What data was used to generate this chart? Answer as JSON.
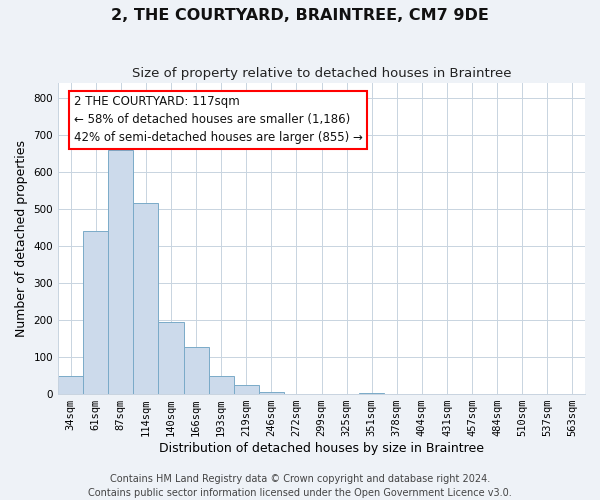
{
  "title": "2, THE COURTYARD, BRAINTREE, CM7 9DE",
  "subtitle": "Size of property relative to detached houses in Braintree",
  "xlabel": "Distribution of detached houses by size in Braintree",
  "ylabel": "Number of detached properties",
  "bar_labels": [
    "34sqm",
    "61sqm",
    "87sqm",
    "114sqm",
    "140sqm",
    "166sqm",
    "193sqm",
    "219sqm",
    "246sqm",
    "272sqm",
    "299sqm",
    "325sqm",
    "351sqm",
    "378sqm",
    "404sqm",
    "431sqm",
    "457sqm",
    "484sqm",
    "510sqm",
    "537sqm",
    "563sqm"
  ],
  "bar_values": [
    50,
    440,
    660,
    515,
    195,
    127,
    48,
    25,
    5,
    0,
    0,
    0,
    2,
    0,
    0,
    0,
    0,
    0,
    0,
    0,
    0
  ],
  "bar_color": "#ccdaeb",
  "bar_edge_color": "#7aaac8",
  "ylim": [
    0,
    840
  ],
  "yticks": [
    0,
    100,
    200,
    300,
    400,
    500,
    600,
    700,
    800
  ],
  "annotation_text_line1": "2 THE COURTYARD: 117sqm",
  "annotation_text_line2": "← 58% of detached houses are smaller (1,186)",
  "annotation_text_line3": "42% of semi-detached houses are larger (855) →",
  "footer_line1": "Contains HM Land Registry data © Crown copyright and database right 2024.",
  "footer_line2": "Contains public sector information licensed under the Open Government Licence v3.0.",
  "background_color": "#eef2f7",
  "plot_background_color": "#ffffff",
  "grid_color": "#c8d4e0",
  "title_fontsize": 11.5,
  "subtitle_fontsize": 9.5,
  "axis_label_fontsize": 9,
  "tick_fontsize": 7.5,
  "annotation_fontsize": 8.5,
  "footer_fontsize": 7
}
